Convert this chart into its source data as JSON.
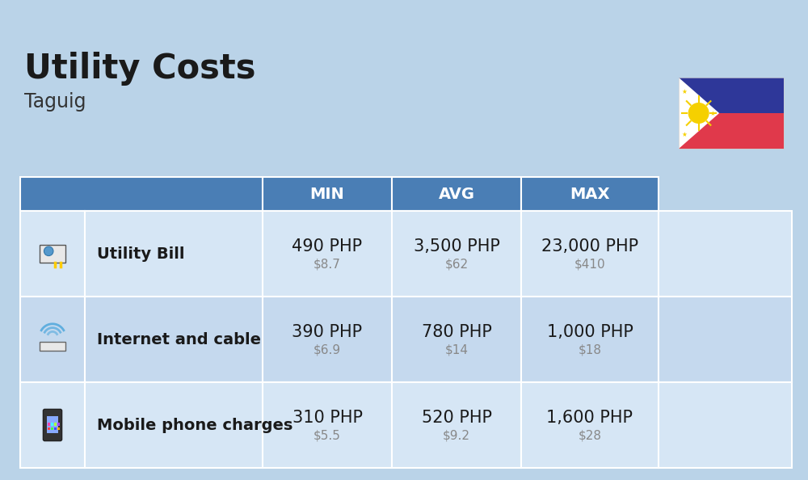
{
  "title": "Utility Costs",
  "subtitle": "Taguig",
  "background_color": "#bad3e8",
  "header_bg_color": "#4a7eb5",
  "header_text_color": "#ffffff",
  "row_bg_color_1": "#d6e6f5",
  "row_bg_color_2": "#c5d9ee",
  "col_headers": [
    "MIN",
    "AVG",
    "MAX"
  ],
  "rows": [
    {
      "label": "Utility Bill",
      "min_php": "490 PHP",
      "min_usd": "$8.7",
      "avg_php": "3,500 PHP",
      "avg_usd": "$62",
      "max_php": "23,000 PHP",
      "max_usd": "$410"
    },
    {
      "label": "Internet and cable",
      "min_php": "390 PHP",
      "min_usd": "$6.9",
      "avg_php": "780 PHP",
      "avg_usd": "$14",
      "max_php": "1,000 PHP",
      "max_usd": "$18"
    },
    {
      "label": "Mobile phone charges",
      "min_php": "310 PHP",
      "min_usd": "$5.5",
      "avg_php": "520 PHP",
      "avg_usd": "$9.2",
      "max_php": "1,600 PHP",
      "max_usd": "$28"
    }
  ],
  "php_fontsize": 15,
  "usd_fontsize": 11,
  "label_fontsize": 14,
  "header_fontsize": 14,
  "title_fontsize": 30,
  "subtitle_fontsize": 17,
  "flag_blue": "#2e3799",
  "flag_red": "#e0394b",
  "flag_sun_color": "#f5d000",
  "flag_white": "#ffffff"
}
